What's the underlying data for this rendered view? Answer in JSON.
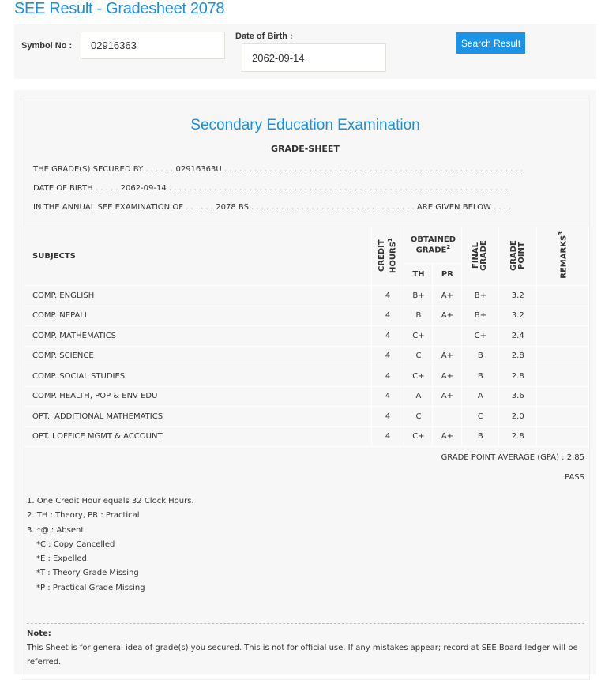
{
  "page_title": "SEE Result - Gradesheet 2078",
  "search": {
    "symbol_label": "Symbol No :",
    "symbol_value": "02916363",
    "dob_label": "Date of Birth :",
    "dob_value": "2062-09-14",
    "button": "Search Result"
  },
  "sheet": {
    "heading": "Secondary Education Examination",
    "subheading": "GRADE-SHEET",
    "line1": "THE GRADE(S) SECURED BY . . . . . . 02916363U . . . . . . . . . . . . . . . . . . . . . . . . . . . . . . . . . . . . . . . . . . . . . . . . . . . . . . . . . . . .",
    "line2": "DATE OF BIRTH . . . . . 2062-09-14 . . . . . . . . . . . . . . . . . . . . . . . . . . . . . . . . . . . . . . . . . . . . . . . . . . . . . . . . . . . . . . . . . . . .",
    "line3": "IN THE ANNUAL SEE EXAMINATION OF . . . . . . 2078 BS . . . . . . . . . . . . . . . . . . . . . . . . . . . . . . . . . ARE GIVEN BELOW . . . .",
    "headers": {
      "subjects": "SUBJECTS",
      "credit": "CREDIT HOURS",
      "credit_sup": "1",
      "obtained": "OBTAINED GRADE",
      "obtained_sup": "2",
      "th": "TH",
      "pr": "PR",
      "final": "FINAL GRADE",
      "gp": "GRADE POINT",
      "remarks": "REMARKS",
      "remarks_sup": "3"
    },
    "rows": [
      {
        "subject": "COMP. ENGLISH",
        "credit": "4",
        "th": "B+",
        "pr": "A+",
        "final": "B+",
        "gp": "3.2"
      },
      {
        "subject": "COMP. NEPALI",
        "credit": "4",
        "th": "B",
        "pr": "A+",
        "final": "B+",
        "gp": "3.2"
      },
      {
        "subject": "COMP. MATHEMATICS",
        "credit": "4",
        "th": "C+",
        "pr": "",
        "final": "C+",
        "gp": "2.4"
      },
      {
        "subject": "COMP. SCIENCE",
        "credit": "4",
        "th": "C",
        "pr": "A+",
        "final": "B",
        "gp": "2.8"
      },
      {
        "subject": "COMP. SOCIAL STUDIES",
        "credit": "4",
        "th": "C+",
        "pr": "A+",
        "final": "B",
        "gp": "2.8"
      },
      {
        "subject": "COMP. HEALTH, POP & ENV EDU",
        "credit": "4",
        "th": "A",
        "pr": "A+",
        "final": "A",
        "gp": "3.6"
      },
      {
        "subject": "OPT.I ADDITIONAL MATHEMATICS",
        "credit": "4",
        "th": "C",
        "pr": "",
        "final": "C",
        "gp": "2.0"
      },
      {
        "subject": "OPT.II OFFICE MGMT & ACCOUNT",
        "credit": "4",
        "th": "C+",
        "pr": "A+",
        "final": "B",
        "gp": "2.8"
      }
    ],
    "gpa": "GRADE POINT AVERAGE (GPA) : 2.85",
    "result": "PASS",
    "notes": [
      "1. One Credit Hour equals 32 Clock Hours.",
      "2. TH : Theory, PR : Practical",
      "3. *@ : Absent",
      "*C : Copy Cancelled",
      "*E : Expelled",
      "*T : Theory Grade Missing",
      "*P : Practical Grade Missing"
    ],
    "note_title": "Note:",
    "note_text": "This Sheet is for general idea of grade(s) you secured. This is not for official use. If any mistakes appear; record at SEE Board ledger will be referred."
  }
}
